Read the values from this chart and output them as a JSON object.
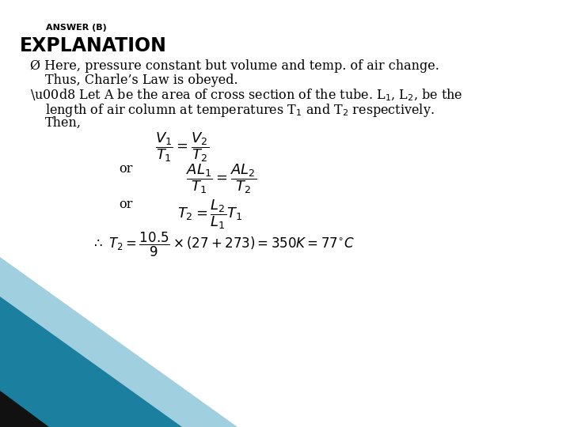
{
  "bg_color": "#ffffff",
  "answer_text": "ANSWER (B)",
  "explanation_title": "EXPLANATION",
  "text_color": "#000000",
  "corner_color_teal": "#1b7fa0",
  "corner_color_black": "#111111",
  "corner_color_light": "#a0cfe0",
  "eq1": "$\\dfrac{V_1}{T_1} = \\dfrac{V_2}{T_2}$",
  "eq2": "$\\dfrac{AL_1}{T_1} = \\dfrac{AL_2}{T_2}$",
  "eq3": "$T_2 = \\dfrac{L_2}{L_1} T_1$",
  "eq4": "$\\therefore \\ T_2 = \\dfrac{10.5}{9} \\times (27 + 273) = 350K = 77^{\\circ}C$"
}
